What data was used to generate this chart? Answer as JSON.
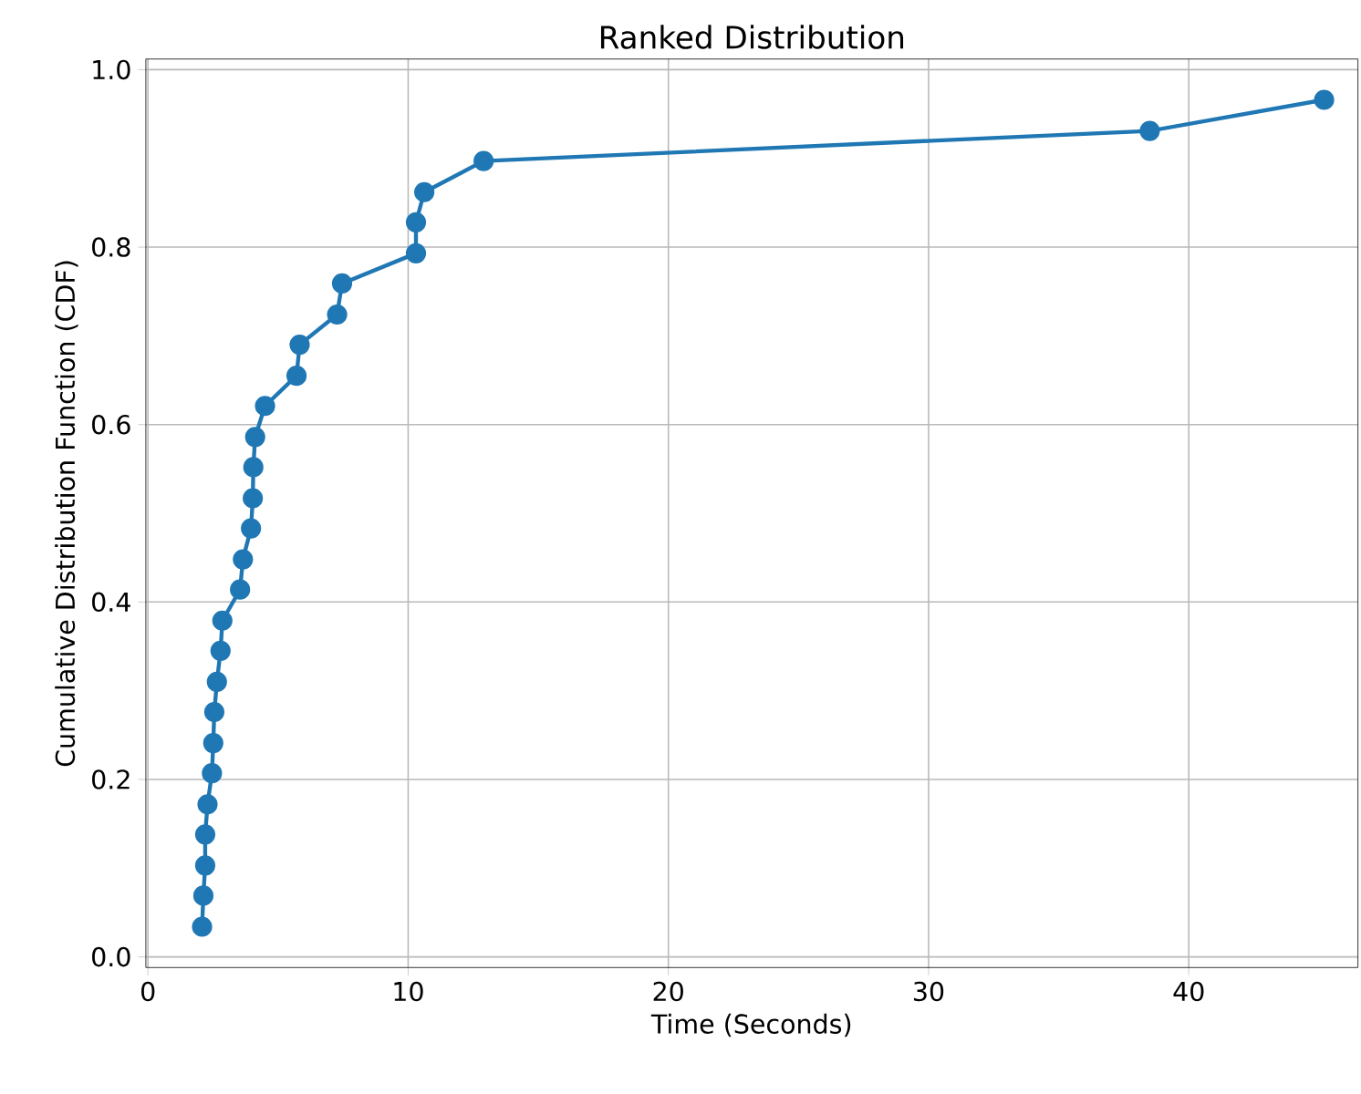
{
  "chart_data": {
    "type": "line",
    "title": "Ranked Distribution",
    "xlabel": "Time (Seconds)",
    "ylabel": "Cumulative Distribution Function (CDF)",
    "x": [
      2.08,
      2.13,
      2.2,
      2.2,
      2.29,
      2.46,
      2.51,
      2.55,
      2.65,
      2.79,
      2.86,
      3.54,
      3.65,
      3.96,
      4.03,
      4.05,
      4.12,
      4.5,
      5.71,
      5.83,
      7.27,
      7.46,
      10.3,
      10.3,
      10.62,
      12.9,
      38.5,
      45.2
    ],
    "values": [
      0.034,
      0.069,
      0.103,
      0.138,
      0.172,
      0.207,
      0.241,
      0.276,
      0.31,
      0.345,
      0.379,
      0.414,
      0.448,
      0.483,
      0.517,
      0.552,
      0.586,
      0.621,
      0.655,
      0.69,
      0.724,
      0.759,
      0.793,
      0.828,
      0.862,
      0.897,
      0.931,
      0.966
    ],
    "color": "#1f77b4",
    "marker": "circle",
    "line_style": "solid",
    "grid": true,
    "xlim": [
      -0.08,
      46.5
    ],
    "ylim": [
      -0.012,
      1.012
    ],
    "xticks": [
      0,
      10,
      20,
      30,
      40
    ],
    "yticks": [
      {
        "value": 0,
        "label": "0.0"
      },
      0.2,
      0.4,
      0.6,
      0.8,
      {
        "value": 1,
        "label": "1.0"
      }
    ]
  }
}
